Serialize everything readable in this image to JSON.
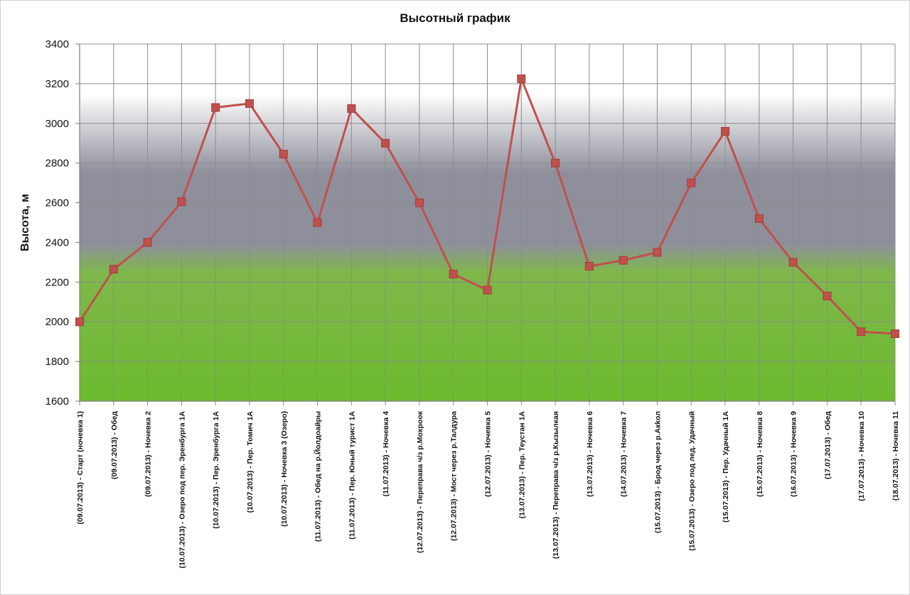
{
  "chart_data": {
    "type": "line",
    "title": "Высотный график",
    "xlabel": "",
    "ylabel": "Высота, м",
    "ylim": [
      1600,
      3400
    ],
    "yticks": [
      1600,
      1800,
      2000,
      2200,
      2400,
      2600,
      2800,
      3000,
      3200,
      3400
    ],
    "grid": true,
    "legend": "none",
    "colors": {
      "line": "#c0504d",
      "marker": "#c0504d",
      "grid": "#8c8c8c",
      "band_top": "#ffffff",
      "band_mid": "#8f8f9c",
      "band_bottom": "#6cbb2e"
    },
    "categories": [
      "(09.07.2013)  -  Старт (ночевка 1)",
      "(09.07.2013)  -  Обед",
      "(09.07.2013)  -  Ночевка 2",
      "(10.07.2013)  -  Озеро под пер. Эренбурга 1А",
      "(10.07.2013)  -  Пер. Эренбурга 1А",
      "(10.07.2013)  -  Пер. Томич 1А",
      "(10.07.2013)  -  Ночевка 3 (Озеро)",
      "(11.07.2013)  -  Обед на р.Йолдоайры",
      "(11.07.2013)  -  Пер. Юный турист 1А",
      "(11.07.2013)  -  Ночевка 4",
      "(12.07.2013)  -  Переправа ч/з р.Мохроок",
      "(12.07.2013)  -  Мост через р.Талдура",
      "(12.07.2013)  -  Ночевка 5",
      "(13.07.2013)  -  Пер. Теустан 1А",
      "(13.07.2013)  -  Переправа ч/з р.Кызылкая",
      "(13.07.2013)  -  Ночевка 6",
      "(14.07.2013)  -  Ночевка 7",
      "(15.07.2013)  -  Брод через р.Акkол",
      "(15.07.2013)  -  Озеро под лед. Удачный",
      "(15.07.2013)  -  Пер. Удачный 1А",
      "(15.07.2013)  -  Ночевка 8",
      "(16.07.2013)  -  Ночевка 9",
      "(17.07.2013)  -  Обед",
      "(17.07.2013)  -  Ночевка 10",
      "(18.07.2013)  -  Ночевка 11"
    ],
    "series": [
      {
        "values": [
          2000,
          2265,
          2400,
          2605,
          3080,
          3100,
          2845,
          2500,
          3075,
          2900,
          2600,
          2240,
          2160,
          3225,
          2800,
          2280,
          2310,
          2350,
          2700,
          2960,
          2520,
          2300,
          2130,
          1950,
          1940
        ]
      }
    ]
  }
}
